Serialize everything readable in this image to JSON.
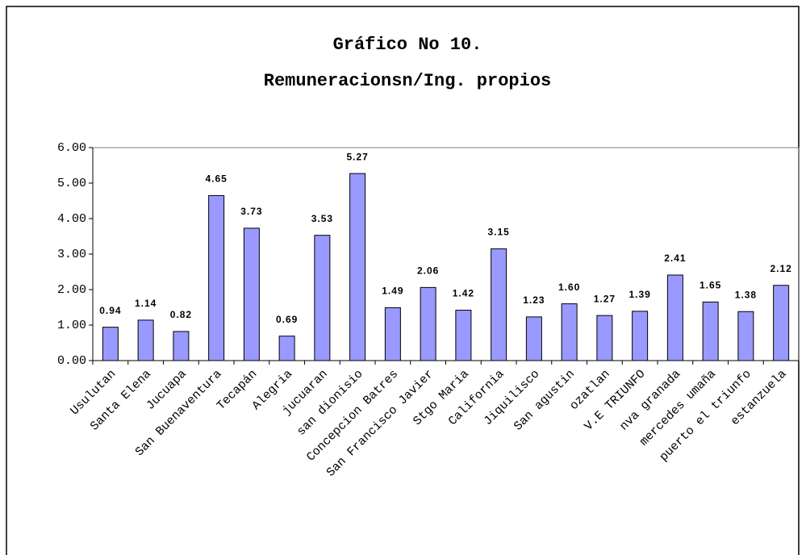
{
  "chart_data": {
    "type": "bar",
    "title": [
      "Gráfico No 10.",
      "Remuneracionsn/Ing. propios"
    ],
    "categories": [
      "Usulutan",
      "Santa Elena",
      "Jucuapa",
      "San Buenaventura",
      "Tecapán",
      "Alegria",
      "jucuaran",
      "san dionisio",
      "Concepcion Batres",
      "San Francisco Javier",
      "Stgo Maria",
      "California",
      "Jiquilisco",
      "San agustin",
      "ozatlan",
      "V.E TRIUNFO",
      "nva granada",
      "mercedes umaña",
      "puerto el triunfo",
      "estanzuela"
    ],
    "values": [
      0.94,
      1.14,
      0.82,
      4.65,
      3.73,
      0.69,
      3.53,
      5.27,
      1.49,
      2.06,
      1.42,
      3.15,
      1.23,
      1.6,
      1.27,
      1.39,
      2.41,
      1.65,
      1.38,
      2.12
    ],
    "value_labels": [
      "0.94",
      "1.14",
      "0.82",
      "4.65",
      "3.73",
      "0.69",
      "3.53",
      "5.27",
      "1.49",
      "2.06",
      "1.42",
      "3.15",
      "1.23",
      "1.60",
      "1.27",
      "1.39",
      "2.41",
      "1.65",
      "1.38",
      "2.12"
    ],
    "color": "#9999ff",
    "ylim": [
      0,
      6
    ],
    "yticks": [
      {
        "value": 0,
        "label": "0.00"
      },
      {
        "value": 1,
        "label": "1.00"
      },
      {
        "value": 2,
        "label": "2.00"
      },
      {
        "value": 3,
        "label": "3.00"
      },
      {
        "value": 4,
        "label": "4.00"
      },
      {
        "value": 5,
        "label": "5.00"
      },
      {
        "value": 6,
        "label": "6.00"
      }
    ],
    "grid": false
  }
}
